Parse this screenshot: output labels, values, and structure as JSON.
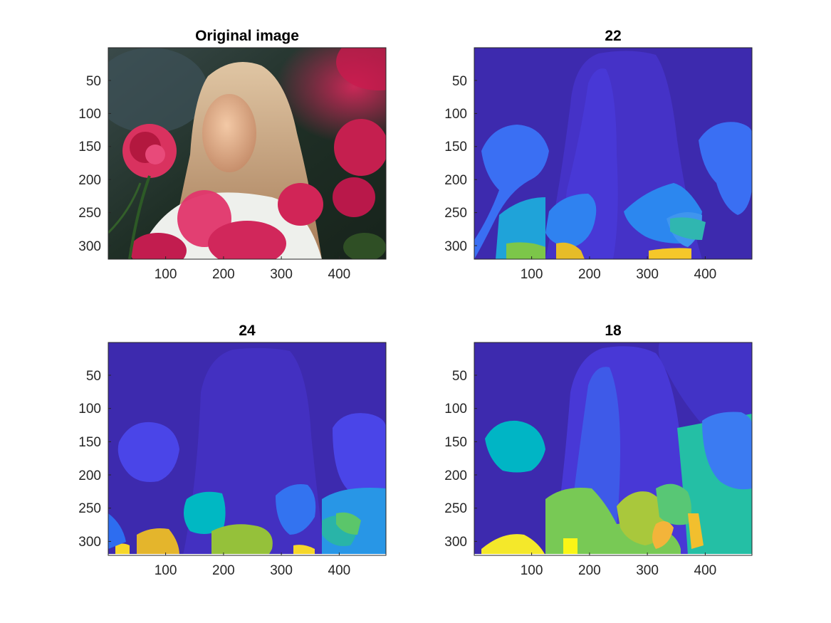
{
  "chart_data": [
    {
      "type": "image",
      "title": "Original image",
      "content": "photo",
      "xticks": [
        100,
        200,
        300,
        400
      ],
      "yticks": [
        50,
        100,
        150,
        200,
        250,
        300
      ],
      "xlim": [
        0.5,
        480.5
      ],
      "ylim": [
        0.5,
        320.5
      ],
      "y_reversed": true
    },
    {
      "type": "heatmap",
      "title": "22",
      "content": "segmentation-label-map",
      "xticks": [
        100,
        200,
        300,
        400
      ],
      "yticks": [
        50,
        100,
        150,
        200,
        250,
        300
      ],
      "xlim": [
        0.5,
        480.5
      ],
      "ylim": [
        0.5,
        320.5
      ],
      "y_reversed": true,
      "colormap": "parula"
    },
    {
      "type": "heatmap",
      "title": "24",
      "content": "segmentation-label-map",
      "xticks": [
        100,
        200,
        300,
        400
      ],
      "yticks": [
        50,
        100,
        150,
        200,
        250,
        300
      ],
      "xlim": [
        0.5,
        480.5
      ],
      "ylim": [
        0.5,
        320.5
      ],
      "y_reversed": true,
      "colormap": "parula"
    },
    {
      "type": "heatmap",
      "title": "18",
      "content": "segmentation-label-map",
      "xticks": [
        100,
        200,
        300,
        400
      ],
      "yticks": [
        50,
        100,
        150,
        200,
        250,
        300
      ],
      "xlim": [
        0.5,
        480.5
      ],
      "ylim": [
        0.5,
        320.5
      ],
      "y_reversed": true,
      "colormap": "parula"
    }
  ]
}
